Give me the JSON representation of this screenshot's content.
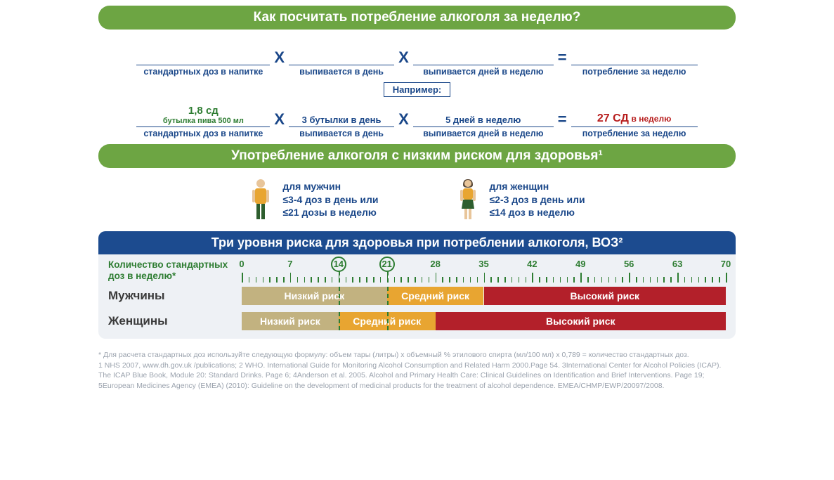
{
  "colors": {
    "green": "#6da543",
    "blue": "#1a4789",
    "darkblue_banner": "#1c4b8f",
    "red": "#b71c1c",
    "panel_bg": "#eef1f5",
    "bar_low": "#c2b280",
    "bar_mid": "#e8a531",
    "bar_high": "#b3202a",
    "foot_grey": "#9aa2ad"
  },
  "banner1": "Как посчитать потребление алкоголя за неделю?",
  "formula_blank": {
    "t1": "стандартных доз в напитке",
    "t2": "выпивается в день",
    "t3": "выпивается дней в неделю",
    "t4": "потребление за неделю",
    "op_x": "X",
    "op_eq": "="
  },
  "example_label": "Например:",
  "formula_ex": {
    "top1a": "1,8 сд",
    "top1b": "бутылка пива  500 мл",
    "b1": "стандартных доз в напитке",
    "top2": "3 бутылки в день",
    "b2": "выпивается в день",
    "top3": "5 дней в неделю",
    "b3": "выпивается дней в неделю",
    "top4a": "27 СД",
    "top4b": " в неделю",
    "b4": "потребление за неделю"
  },
  "banner2": "Употребление алкоголя с низким риском для здоровья¹",
  "lowrisk": {
    "men": {
      "h": "для мужчин",
      "l1": "≤3-4 доз в день или",
      "l2": "≤21 дозы в неделю"
    },
    "women": {
      "h": "для женщин",
      "l1": "≤2-3 доз в день или",
      "l2": "≤14 доз в неделю"
    }
  },
  "risk": {
    "header": "Три уровня риска для здоровья при потреблении алкоголя, ВОЗ²",
    "axis_label": "Количество стандартных доз в неделю*",
    "scale": {
      "min": 0,
      "max": 70,
      "step": 7,
      "circled": [
        14,
        21
      ],
      "minor_per_major": 6
    },
    "row_men": "Мужчины",
    "row_women": "Женщины",
    "seg_low": "Низкий  риск",
    "seg_mid": "Средний риск",
    "seg_high": "Высокий риск",
    "men": {
      "low": [
        0,
        21
      ],
      "mid": [
        21,
        35
      ],
      "high": [
        35,
        70
      ]
    },
    "women": {
      "low": [
        0,
        14
      ],
      "mid": [
        14,
        28
      ],
      "high": [
        28,
        70
      ]
    },
    "dashed_at": [
      14,
      21
    ]
  },
  "footnotes": [
    "* Для расчета стандартных доз используйте следующую формулу: объем тары (литры) x объемный % этилового спирта (мл/100 мл) x 0,789 = количество стандартных доз.",
    "1 NHS 2007, www.dh.gov.uk /publications; 2 WHO. International Guide for Monitoring Alcohol Consumption and Related Harm 2000.Page 54. 3International Center for Alcohol Policies (ICAP). The ICAP Blue Book, Module 20: Standard Drinks. Page 6; 4Anderson et al. 2005. Alcohol and Primary Health Care: Clinical Guidelines on Identification and Brief Interventions. Page 19; 5European Medicines Agency (EMEA) (2010): Guideline on the development of medicinal products for the treatment of alcohol dependence. EMEA/CHMP/EWP/20097/2008."
  ]
}
